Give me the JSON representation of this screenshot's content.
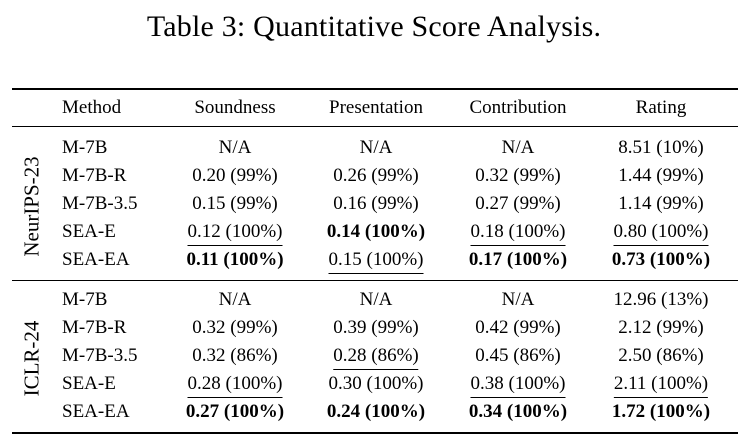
{
  "caption": "Table 3: Quantitative Score Analysis.",
  "table": {
    "columns": [
      "Method",
      "Soundness",
      "Presentation",
      "Contribution",
      "Rating"
    ],
    "groups": [
      {
        "name": "NeurIPS-23",
        "rows": [
          {
            "method": "M-7B",
            "soundness": {
              "text": "N/A"
            },
            "presentation": {
              "text": "N/A"
            },
            "contribution": {
              "text": "N/A"
            },
            "rating": {
              "text": "8.51 (10%)"
            }
          },
          {
            "method": "M-7B-R",
            "soundness": {
              "text": "0.20 (99%)"
            },
            "presentation": {
              "text": "0.26 (99%)"
            },
            "contribution": {
              "text": "0.32 (99%)"
            },
            "rating": {
              "text": "1.44 (99%)"
            }
          },
          {
            "method": "M-7B-3.5",
            "soundness": {
              "text": "0.15 (99%)"
            },
            "presentation": {
              "text": "0.16 (99%)"
            },
            "contribution": {
              "text": "0.27 (99%)"
            },
            "rating": {
              "text": "1.14 (99%)"
            }
          },
          {
            "method": "SEA-E",
            "soundness": {
              "text": "0.12 (100%)",
              "underline": true
            },
            "presentation": {
              "text": "0.14 (100%)",
              "bold": true
            },
            "contribution": {
              "text": "0.18 (100%)",
              "underline": true
            },
            "rating": {
              "text": "0.80 (100%)",
              "underline": true
            }
          },
          {
            "method": "SEA-EA",
            "soundness": {
              "text": "0.11 (100%)",
              "bold": true
            },
            "presentation": {
              "text": "0.15 (100%)",
              "underline": true
            },
            "contribution": {
              "text": "0.17 (100%)",
              "bold": true
            },
            "rating": {
              "text": "0.73 (100%)",
              "bold": true
            }
          }
        ]
      },
      {
        "name": "ICLR-24",
        "rows": [
          {
            "method": "M-7B",
            "soundness": {
              "text": "N/A"
            },
            "presentation": {
              "text": "N/A"
            },
            "contribution": {
              "text": "N/A"
            },
            "rating": {
              "text": "12.96 (13%)"
            }
          },
          {
            "method": "M-7B-R",
            "soundness": {
              "text": "0.32 (99%)"
            },
            "presentation": {
              "text": "0.39 (99%)"
            },
            "contribution": {
              "text": "0.42 (99%)"
            },
            "rating": {
              "text": "2.12 (99%)"
            }
          },
          {
            "method": "M-7B-3.5",
            "soundness": {
              "text": "0.32 (86%)"
            },
            "presentation": {
              "text": "0.28 (86%)",
              "underline": true
            },
            "contribution": {
              "text": "0.45 (86%)"
            },
            "rating": {
              "text": "2.50 (86%)"
            }
          },
          {
            "method": "SEA-E",
            "soundness": {
              "text": "0.28 (100%)",
              "underline": true
            },
            "presentation": {
              "text": "0.30 (100%)"
            },
            "contribution": {
              "text": "0.38 (100%)",
              "underline": true
            },
            "rating": {
              "text": "2.11 (100%)",
              "underline": true
            }
          },
          {
            "method": "SEA-EA",
            "soundness": {
              "text": "0.27 (100%)",
              "bold": true
            },
            "presentation": {
              "text": "0.24 (100%)",
              "bold": true
            },
            "contribution": {
              "text": "0.34 (100%)",
              "bold": true
            },
            "rating": {
              "text": "1.72 (100%)",
              "bold": true
            }
          }
        ]
      }
    ]
  }
}
